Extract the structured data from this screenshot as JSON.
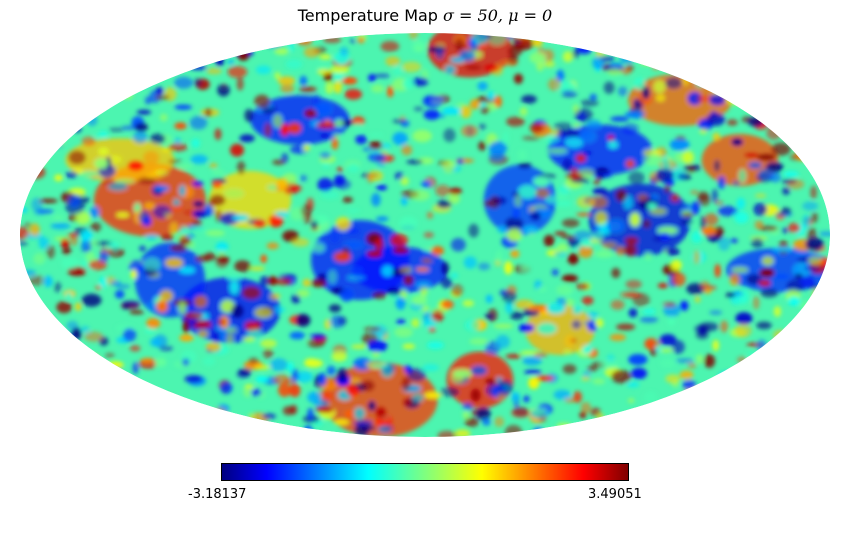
{
  "chart_data": {
    "type": "heatmap",
    "projection": "mollweide",
    "title_prefix": "Temperature Map ",
    "title_math": "σ = 50, μ = 0",
    "colormap": "jet",
    "colormap_stops": [
      "#000080",
      "#0000ff",
      "#00ffff",
      "#7fff7f",
      "#ffff00",
      "#ff0000",
      "#800000"
    ],
    "colorbar": {
      "min_label": "-3.18137",
      "max_label": "3.49051",
      "min": -3.18137,
      "max": 3.49051
    }
  }
}
